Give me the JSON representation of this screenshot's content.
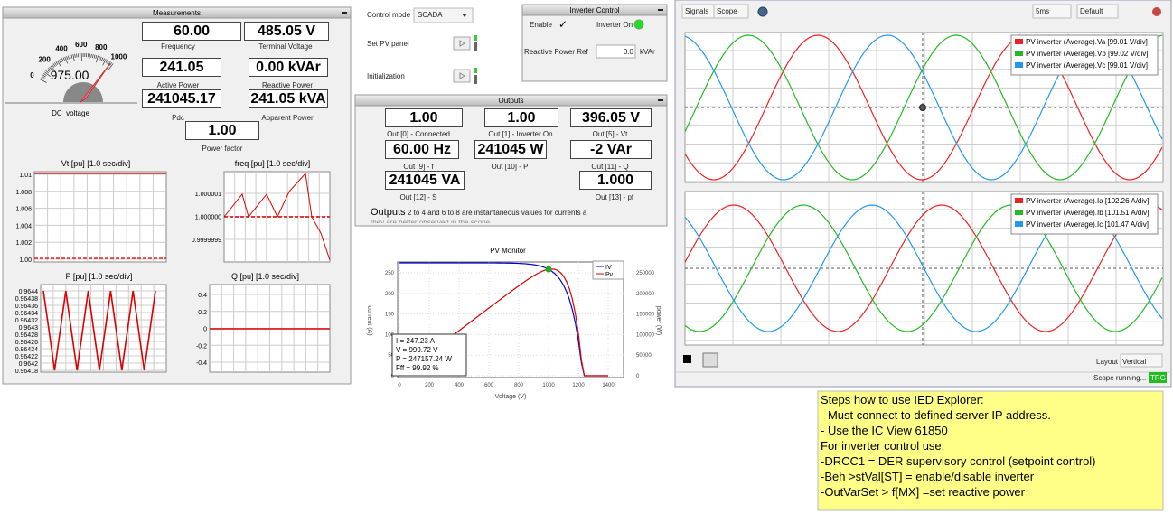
{
  "measurements": {
    "title": "Measurements",
    "gauge": {
      "ticks": [
        "0",
        "200",
        "400",
        "600",
        "800",
        "1000"
      ],
      "value": "975.00",
      "label": "DC_voltage"
    },
    "fields": [
      {
        "value": "60.00",
        "label": "Frequency"
      },
      {
        "value": "485.05 V",
        "label": "Terminal Voltage"
      },
      {
        "value": "241.05",
        "label": "Active Power"
      },
      {
        "value": "0.00 kVAr",
        "label": "Reactive Power"
      },
      {
        "value": "241045.17",
        "label": "Pdc"
      },
      {
        "value": "241.05 kVA",
        "label": "Apparent Power"
      },
      {
        "value": "1.00",
        "label": "Power factor"
      }
    ],
    "plots": [
      {
        "title": "Vt [pu] [1.0 sec/div]",
        "yticks": [
          "1.01",
          "1.008",
          "1.006",
          "1.004",
          "1.002",
          "1.00"
        ]
      },
      {
        "title": "freq [pu] [1.0 sec/div]",
        "yticks": [
          "1.000001",
          "1.000000",
          "0.9999999"
        ]
      },
      {
        "title": "P [pu] [1.0 sec/div]",
        "yticks": [
          "0.9644",
          "0.96438",
          "0.96436",
          "0.96434",
          "0.96432",
          "0.9643",
          "0.96428",
          "0.96426",
          "0.96424",
          "0.96422",
          "0.9642",
          "0.96418"
        ]
      },
      {
        "title": "Q [pu] [1.0 sec/div]",
        "yticks": [
          "0.4",
          "0.2",
          "0",
          "-0.2",
          "-0.4"
        ]
      }
    ]
  },
  "control": {
    "mode_label": "Control mode",
    "mode": "SCADA",
    "set_pv": "Set PV panel",
    "init": "Initialization"
  },
  "inverter_control": {
    "title": "Inverter Control",
    "enable": "Enable",
    "check": "✓",
    "inverter_on": "Inverter On",
    "reactive_ref": "Reactive Power Ref",
    "reactive_value": "0.0",
    "unit": "kVAr"
  },
  "outputs": {
    "title": "Outputs",
    "items": [
      {
        "value": "1.00",
        "label": "Out [0] - Connected"
      },
      {
        "value": "1.00",
        "label": "Out [1] - Inverter On"
      },
      {
        "value": "396.05 V",
        "label": "Out [5] - Vt"
      },
      {
        "value": "60.00 Hz",
        "label": "Out [9] - f"
      },
      {
        "value": "241045 W",
        "label": "Out [10] - P"
      },
      {
        "value": "-2 VAr",
        "label": "Out [11] - Q"
      },
      {
        "value": "241045 VA",
        "label": "Out [12] - S"
      },
      {
        "value": "1.000",
        "label": "Out [13] - pf"
      }
    ],
    "note_title": "Outputs",
    "note": "2 to 4 and 6 to 8 are instantaneous values for currents a",
    "note2": "they are better observed in the scope"
  },
  "pv_monitor": {
    "title": "PV Monitor",
    "legend": [
      "IV",
      "Pv"
    ],
    "xlabel": "Voltage (V)",
    "ylabel": "current (A)",
    "y2label": "power (W)",
    "xticks": [
      "0",
      "200",
      "400",
      "600",
      "800",
      "1000",
      "1200",
      "1400"
    ],
    "yticks": [
      "250",
      "200",
      "150",
      "100",
      "50",
      "0"
    ],
    "y2ticks": [
      "250000",
      "200000",
      "150000",
      "100000",
      "50000",
      "0"
    ],
    "info": [
      "I = 247.23 A",
      "V = 999.72 V",
      "P = 247157.24 W",
      "Fff = 99.92 %"
    ]
  },
  "scope": {
    "toolbar": [
      "Signals",
      "Scope",
      "5ms",
      "Default"
    ],
    "plots": [
      {
        "legend": [
          "PV inverter (Average).Va [99.01 V/div]",
          "PV inverter (Average).Vb [99.02 V/div]",
          "PV inverter (Average).Vc [99.01 V/div]"
        ]
      },
      {
        "legend": [
          "PV inverter (Average).Ia [102.26 A/div]",
          "PV inverter (Average).Ib [101.51 A/div]",
          "PV inverter (Average).Ic [101.47 A/div]"
        ]
      }
    ],
    "layout_label": "Layout",
    "layout": "Vertical",
    "status": "Scope running...",
    "trg": "TRG"
  },
  "note": {
    "lines": [
      "Steps how to use IED Explorer:",
      "- Must connect to defined server IP address.",
      "- Use the IC View 61850",
      "For inverter control use:",
      "-DRCC1  = DER supervisory control (setpoint control)",
      "-Beh >stVal[ST]  = enable/disable inverter",
      "-OutVarSet > f[MX] =set reactive power"
    ]
  }
}
